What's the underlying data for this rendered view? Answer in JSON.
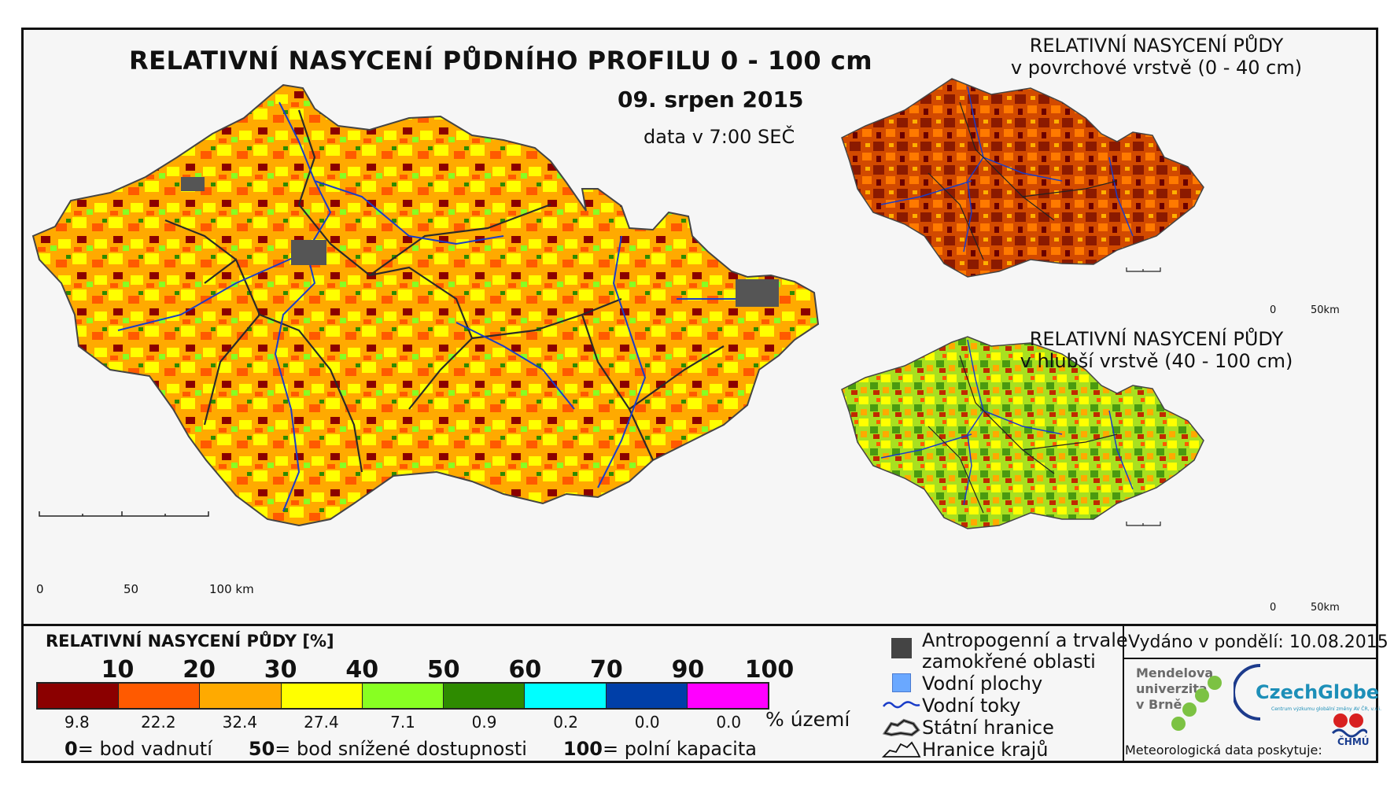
{
  "main_map": {
    "title": "RELATIVNÍ NASYCENÍ PŮDNÍHO PROFILU 0 - 100 cm",
    "date": "09. srpen 2015",
    "time": "data v 7:00 SEČ",
    "scale": {
      "tick_0": "0",
      "tick_50": "50",
      "tick_100": "100 km"
    }
  },
  "inset_top": {
    "title_line1": "RELATIVNÍ NASYCENÍ PŮDY",
    "title_line2": "v povrchové vrstvě (0 - 40 cm)",
    "scale": {
      "tick_0": "0",
      "tick_end": "50km"
    }
  },
  "inset_bottom": {
    "title_line1": "RELATIVNÍ NASYCENÍ PŮDY",
    "title_line2": "v hlubší vrstvě (40 - 100 cm)",
    "scale": {
      "tick_0": "0",
      "tick_end": "50km"
    }
  },
  "legend": {
    "title": "RELATIVNÍ NASYCENÍ PŮDY [%]",
    "ticks": [
      "10",
      "20",
      "30",
      "40",
      "50",
      "60",
      "70",
      "90",
      "100"
    ],
    "classes": [
      {
        "color": "#8b0000",
        "pct": "9.8"
      },
      {
        "color": "#ff5a00",
        "pct": "22.2"
      },
      {
        "color": "#ffaa00",
        "pct": "32.4"
      },
      {
        "color": "#ffff00",
        "pct": "27.4"
      },
      {
        "color": "#88ff22",
        "pct": "7.1"
      },
      {
        "color": "#2e8b00",
        "pct": "0.9"
      },
      {
        "color": "#00ffff",
        "pct": "0.2"
      },
      {
        "color": "#003fa8",
        "pct": "0.0"
      },
      {
        "color": "#ff00ff",
        "pct": "0.0"
      }
    ],
    "unit": "% území",
    "definitions": [
      {
        "value": "0",
        "text": "= bod vadnutí"
      },
      {
        "value": "50",
        "text": "= bod snížené dostupnosti"
      },
      {
        "value": "100",
        "text": "= polní kapacita"
      }
    ]
  },
  "symbols": {
    "wetland_line1": "Antropogenní a trvale",
    "wetland_line2": "zamokřené oblasti",
    "water": "Vodní plochy",
    "rivers": "Vodní toky",
    "border": "Státní hranice",
    "regions": "Hranice krajů",
    "colors": {
      "wetland": "#444444",
      "water": "#6aa8ff",
      "river": "#1a3dc8"
    }
  },
  "credits": {
    "issued": "Vydáno v pondělí: 10.08.2015",
    "mendel_line1": "Mendelova",
    "mendel_line2": "univerzita",
    "mendel_line3": "v Brně",
    "czechglobe": "CzechGlobe",
    "czechglobe_sub": "Centrum výzkumu globální změny AV ČR, v.v.i.",
    "meteo": "Meteorologická data poskytuje:",
    "chmu": "ČHMÚ"
  }
}
